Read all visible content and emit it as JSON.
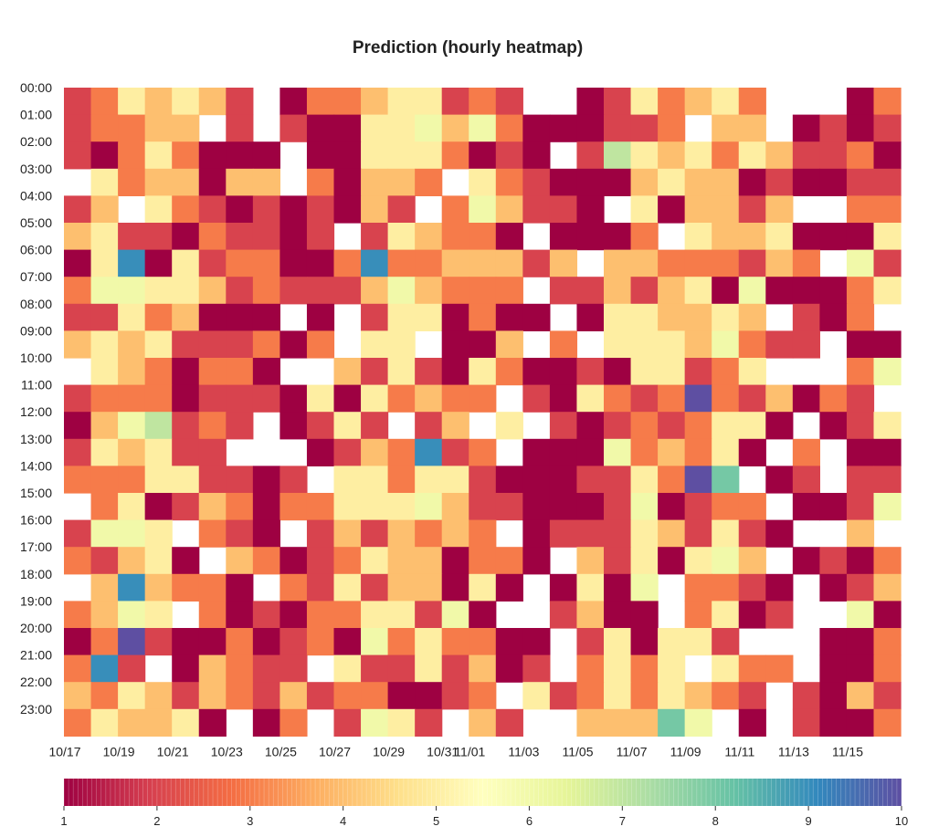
{
  "chart_data": {
    "type": "heatmap",
    "title": "Prediction (hourly heatmap)",
    "y_labels": [
      "00:00",
      "01:00",
      "02:00",
      "03:00",
      "04:00",
      "05:00",
      "06:00",
      "07:00",
      "08:00",
      "09:00",
      "10:00",
      "11:00",
      "12:00",
      "13:00",
      "14:00",
      "15:00",
      "16:00",
      "17:00",
      "18:00",
      "19:00",
      "20:00",
      "21:00",
      "22:00",
      "23:00"
    ],
    "x_labels": [
      "10/17",
      "10/19",
      "10/21",
      "10/23",
      "10/25",
      "10/27",
      "10/29",
      "10/31",
      "11/01",
      "11/03",
      "11/05",
      "11/07",
      "11/09",
      "11/11",
      "11/13",
      "11/15"
    ],
    "x_dates": [
      "10/17",
      "10/18",
      "10/19",
      "10/20",
      "10/21",
      "10/22",
      "10/23",
      "10/24",
      "10/25",
      "10/26",
      "10/27",
      "10/28",
      "10/29",
      "10/30",
      "10/31",
      "11/01",
      "11/02",
      "11/03",
      "11/04",
      "11/05",
      "11/06",
      "11/07",
      "11/08",
      "11/09",
      "11/10",
      "11/11",
      "11/12",
      "11/13",
      "11/14",
      "11/15",
      "11/16"
    ],
    "rows_value_grid": [
      [
        2,
        3,
        5,
        4,
        5,
        4,
        2,
        null,
        1,
        3,
        3,
        4,
        5,
        5,
        2,
        3,
        2,
        null,
        null,
        1,
        2,
        5,
        3,
        4,
        5,
        3,
        null,
        null,
        null,
        1,
        3
      ],
      [
        2,
        3,
        3,
        4,
        4,
        null,
        2,
        null,
        2,
        1,
        1,
        5,
        5,
        6,
        4,
        6,
        3,
        1,
        1,
        1,
        2,
        2,
        3,
        null,
        4,
        4,
        null,
        1,
        2,
        1,
        2
      ],
      [
        2,
        1,
        3,
        5,
        3,
        1,
        1,
        1,
        null,
        1,
        1,
        5,
        5,
        5,
        3,
        1,
        2,
        1,
        null,
        2,
        7,
        5,
        4,
        5,
        3,
        5,
        4,
        2,
        2,
        3,
        1
      ],
      [
        null,
        5,
        3,
        4,
        4,
        1,
        4,
        4,
        null,
        3,
        1,
        4,
        4,
        3,
        null,
        5,
        3,
        2,
        1,
        1,
        1,
        4,
        5,
        4,
        4,
        1,
        2,
        1,
        1,
        2,
        2
      ],
      [
        2,
        4,
        null,
        5,
        3,
        2,
        1,
        2,
        1,
        2,
        1,
        4,
        2,
        null,
        3,
        6,
        4,
        2,
        2,
        1,
        null,
        5,
        1,
        4,
        4,
        2,
        4,
        null,
        null,
        3,
        3
      ],
      [
        4,
        5,
        2,
        2,
        1,
        3,
        2,
        2,
        1,
        2,
        null,
        2,
        5,
        4,
        3,
        3,
        1,
        null,
        1,
        1,
        1,
        3,
        null,
        5,
        4,
        4,
        5,
        1,
        1,
        1,
        5
      ],
      [
        1,
        5,
        9,
        1,
        5,
        2,
        3,
        3,
        1,
        1,
        3,
        9,
        3,
        3,
        4,
        4,
        4,
        2,
        4,
        null,
        4,
        4,
        3,
        3,
        3,
        2,
        4,
        3,
        null,
        6,
        2
      ],
      [
        3,
        6,
        6,
        5,
        5,
        4,
        2,
        3,
        2,
        2,
        2,
        4,
        6,
        4,
        3,
        3,
        3,
        null,
        2,
        2,
        4,
        2,
        4,
        5,
        1,
        6,
        1,
        1,
        1,
        3,
        5
      ],
      [
        2,
        2,
        5,
        3,
        4,
        1,
        1,
        1,
        null,
        1,
        null,
        2,
        5,
        5,
        1,
        3,
        1,
        1,
        null,
        1,
        5,
        5,
        4,
        4,
        5,
        4,
        null,
        2,
        1,
        3,
        null
      ],
      [
        4,
        5,
        4,
        5,
        2,
        2,
        2,
        3,
        1,
        3,
        null,
        5,
        5,
        null,
        1,
        1,
        4,
        null,
        3,
        null,
        5,
        5,
        5,
        4,
        6,
        3,
        2,
        2,
        null,
        1,
        1
      ],
      [
        null,
        5,
        4,
        3,
        1,
        3,
        3,
        1,
        null,
        null,
        4,
        2,
        5,
        2,
        1,
        5,
        3,
        1,
        1,
        2,
        1,
        5,
        5,
        2,
        3,
        5,
        null,
        null,
        null,
        3,
        6
      ],
      [
        2,
        3,
        3,
        3,
        1,
        2,
        2,
        2,
        1,
        5,
        1,
        5,
        3,
        4,
        3,
        3,
        null,
        2,
        1,
        5,
        3,
        2,
        3,
        10,
        3,
        2,
        4,
        1,
        3,
        2,
        null
      ],
      [
        1,
        4,
        6,
        7,
        2,
        3,
        2,
        null,
        1,
        2,
        5,
        2,
        null,
        2,
        4,
        null,
        5,
        null,
        2,
        1,
        2,
        3,
        2,
        3,
        5,
        5,
        1,
        null,
        1,
        2,
        5
      ],
      [
        2,
        5,
        4,
        5,
        2,
        2,
        null,
        null,
        null,
        1,
        2,
        4,
        3,
        9,
        2,
        3,
        null,
        1,
        1,
        1,
        6,
        3,
        4,
        3,
        5,
        1,
        null,
        3,
        null,
        1,
        1
      ],
      [
        3,
        3,
        3,
        5,
        5,
        2,
        2,
        1,
        2,
        null,
        5,
        5,
        3,
        5,
        5,
        2,
        1,
        1,
        1,
        2,
        2,
        5,
        3,
        10,
        8,
        null,
        1,
        2,
        null,
        2,
        2
      ],
      [
        null,
        3,
        5,
        1,
        2,
        4,
        3,
        1,
        3,
        3,
        5,
        5,
        5,
        6,
        4,
        2,
        2,
        1,
        1,
        1,
        2,
        6,
        1,
        2,
        3,
        3,
        null,
        1,
        1,
        2,
        6
      ],
      [
        2,
        6,
        6,
        5,
        null,
        3,
        2,
        1,
        null,
        2,
        4,
        2,
        4,
        3,
        4,
        3,
        null,
        1,
        2,
        2,
        2,
        5,
        4,
        2,
        5,
        2,
        1,
        null,
        null,
        4,
        null
      ],
      [
        3,
        2,
        4,
        5,
        1,
        null,
        4,
        3,
        1,
        2,
        3,
        5,
        4,
        4,
        1,
        3,
        3,
        1,
        null,
        4,
        2,
        5,
        1,
        5,
        6,
        4,
        null,
        1,
        2,
        1,
        3
      ],
      [
        null,
        4,
        9,
        4,
        3,
        3,
        1,
        null,
        3,
        2,
        5,
        2,
        4,
        4,
        1,
        5,
        1,
        null,
        1,
        5,
        1,
        6,
        null,
        3,
        3,
        2,
        1,
        null,
        1,
        2,
        4
      ],
      [
        3,
        4,
        6,
        5,
        null,
        3,
        1,
        2,
        1,
        3,
        3,
        5,
        5,
        2,
        6,
        1,
        null,
        null,
        2,
        4,
        1,
        1,
        null,
        3,
        5,
        1,
        2,
        null,
        null,
        6,
        1
      ],
      [
        1,
        3,
        10,
        2,
        1,
        1,
        3,
        1,
        2,
        3,
        1,
        6,
        3,
        5,
        3,
        3,
        1,
        1,
        null,
        2,
        5,
        1,
        5,
        5,
        2,
        null,
        null,
        null,
        1,
        1,
        3
      ],
      [
        3,
        9,
        2,
        null,
        1,
        4,
        3,
        2,
        2,
        null,
        5,
        2,
        2,
        5,
        2,
        4,
        1,
        2,
        null,
        3,
        5,
        3,
        5,
        null,
        5,
        3,
        3,
        null,
        1,
        1,
        3
      ],
      [
        4,
        3,
        5,
        4,
        2,
        4,
        3,
        2,
        4,
        2,
        3,
        3,
        1,
        1,
        2,
        3,
        null,
        5,
        2,
        3,
        5,
        3,
        5,
        4,
        3,
        2,
        null,
        2,
        1,
        4,
        2
      ],
      [
        3,
        5,
        4,
        4,
        5,
        1,
        null,
        1,
        3,
        null,
        2,
        6,
        5,
        2,
        null,
        4,
        2,
        null,
        null,
        4,
        4,
        4,
        8,
        6,
        null,
        1,
        null,
        2,
        1,
        1,
        3
      ]
    ],
    "colorbar": {
      "min": 1,
      "max": 10,
      "ticks": [
        1,
        2,
        3,
        4,
        5,
        6,
        7,
        8,
        9,
        10
      ],
      "colormap": "Spectral"
    },
    "empty_cells": "white"
  }
}
